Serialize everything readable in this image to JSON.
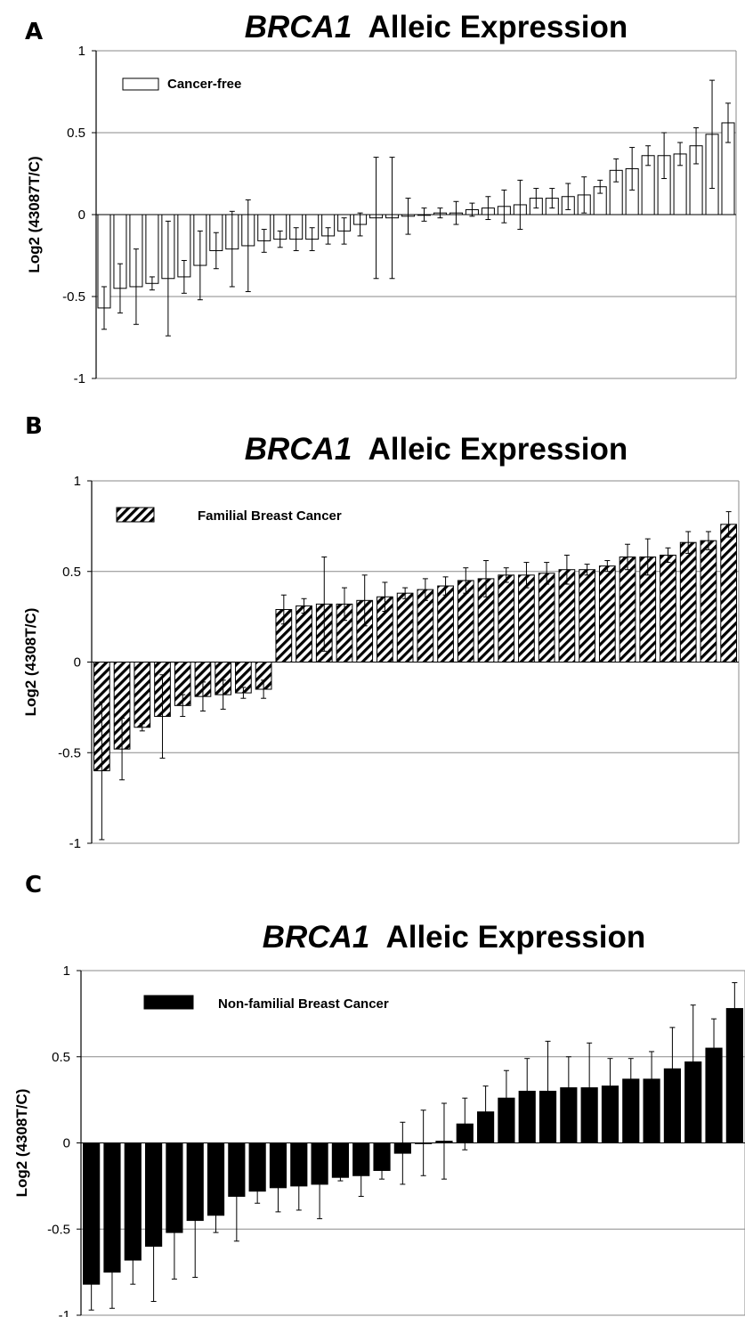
{
  "chart_data": [
    {
      "type": "bar",
      "panel": "A",
      "title_gene": "BRCA1",
      "title_rest": "Alleic Expression",
      "ylabel": "Log2 (43087T/C)",
      "ylim": [
        -1,
        1
      ],
      "yticks": [
        1,
        0.5,
        0,
        -0.5,
        -1
      ],
      "ytick_labels": [
        "1",
        "0.5",
        "0",
        "-0.5",
        "-1"
      ],
      "grid": true,
      "legend": "Cancer-free",
      "fill": "open",
      "values": [
        -0.57,
        -0.45,
        -0.44,
        -0.42,
        -0.39,
        -0.38,
        -0.31,
        -0.22,
        -0.21,
        -0.19,
        -0.16,
        -0.15,
        -0.15,
        -0.15,
        -0.13,
        -0.1,
        -0.06,
        -0.02,
        -0.02,
        -0.01,
        0.0,
        0.01,
        0.01,
        0.03,
        0.04,
        0.05,
        0.06,
        0.1,
        0.1,
        0.11,
        0.12,
        0.17,
        0.27,
        0.28,
        0.36,
        0.36,
        0.37,
        0.42,
        0.49,
        0.56
      ],
      "errors": [
        0.13,
        0.15,
        0.23,
        0.04,
        0.35,
        0.1,
        0.21,
        0.11,
        0.23,
        0.28,
        0.07,
        0.05,
        0.07,
        0.07,
        0.05,
        0.08,
        0.07,
        0.37,
        0.37,
        0.11,
        0.04,
        0.03,
        0.07,
        0.04,
        0.07,
        0.1,
        0.15,
        0.06,
        0.06,
        0.08,
        0.11,
        0.04,
        0.07,
        0.13,
        0.06,
        0.14,
        0.07,
        0.11,
        0.33,
        0.12
      ]
    },
    {
      "type": "bar",
      "panel": "B",
      "title_gene": "BRCA1",
      "title_rest": "Alleic Expression",
      "ylabel": "Log2 (4308T/C)",
      "ylim": [
        -1,
        1
      ],
      "yticks": [
        1,
        0.5,
        0,
        -0.5,
        -1
      ],
      "ytick_labels": [
        "1",
        "0.5",
        "0",
        "-0.5",
        "-1"
      ],
      "grid": true,
      "legend": "Familial Breast Cancer",
      "fill": "hatched",
      "values": [
        -0.6,
        -0.48,
        -0.36,
        -0.3,
        -0.24,
        -0.19,
        -0.18,
        -0.17,
        -0.15,
        0.29,
        0.31,
        0.32,
        0.32,
        0.34,
        0.36,
        0.38,
        0.4,
        0.42,
        0.45,
        0.46,
        0.48,
        0.48,
        0.49,
        0.51,
        0.51,
        0.53,
        0.58,
        0.58,
        0.59,
        0.66,
        0.67,
        0.76
      ],
      "errors": [
        0.38,
        0.17,
        0.02,
        0.23,
        0.06,
        0.08,
        0.08,
        0.03,
        0.05,
        0.08,
        0.04,
        0.26,
        0.09,
        0.14,
        0.08,
        0.03,
        0.06,
        0.05,
        0.07,
        0.1,
        0.04,
        0.07,
        0.06,
        0.08,
        0.03,
        0.03,
        0.07,
        0.1,
        0.04,
        0.06,
        0.05,
        0.07
      ]
    },
    {
      "type": "bar",
      "panel": "C",
      "title_gene": "BRCA1",
      "title_rest": "Alleic Expression",
      "ylabel": "Log2 (4308T/C)",
      "ylim": [
        -1,
        1
      ],
      "yticks": [
        1,
        0.5,
        0,
        -0.5,
        -1
      ],
      "ytick_labels": [
        "1",
        "0.5",
        "0",
        "-0.5",
        "-1"
      ],
      "grid": true,
      "legend": "Non-familial Breast Cancer",
      "fill": "solid",
      "values": [
        -0.82,
        -0.75,
        -0.68,
        -0.6,
        -0.52,
        -0.45,
        -0.42,
        -0.31,
        -0.28,
        -0.26,
        -0.25,
        -0.24,
        -0.2,
        -0.19,
        -0.16,
        -0.06,
        0.0,
        0.01,
        0.11,
        0.18,
        0.26,
        0.3,
        0.3,
        0.32,
        0.32,
        0.33,
        0.37,
        0.37,
        0.43,
        0.47,
        0.55,
        0.78
      ],
      "errors": [
        0.15,
        0.21,
        0.14,
        0.32,
        0.27,
        0.33,
        0.1,
        0.26,
        0.07,
        0.14,
        0.14,
        0.2,
        0.02,
        0.12,
        0.05,
        0.18,
        0.19,
        0.22,
        0.15,
        0.15,
        0.16,
        0.19,
        0.29,
        0.18,
        0.26,
        0.16,
        0.12,
        0.16,
        0.24,
        0.33,
        0.17,
        0.15
      ]
    }
  ]
}
